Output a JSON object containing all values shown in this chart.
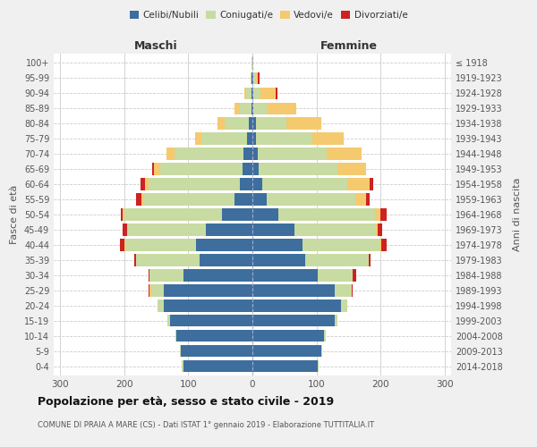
{
  "age_groups": [
    "0-4",
    "5-9",
    "10-14",
    "15-19",
    "20-24",
    "25-29",
    "30-34",
    "35-39",
    "40-44",
    "45-49",
    "50-54",
    "55-59",
    "60-64",
    "65-69",
    "70-74",
    "75-79",
    "80-84",
    "85-89",
    "90-94",
    "95-99",
    "100+"
  ],
  "birth_years": [
    "2014-2018",
    "2009-2013",
    "2004-2008",
    "1999-2003",
    "1994-1998",
    "1989-1993",
    "1984-1988",
    "1979-1983",
    "1974-1978",
    "1969-1973",
    "1964-1968",
    "1959-1963",
    "1954-1958",
    "1949-1953",
    "1944-1948",
    "1939-1943",
    "1934-1938",
    "1929-1933",
    "1924-1928",
    "1919-1923",
    "≤ 1918"
  ],
  "maschi": {
    "celibi": [
      108,
      112,
      118,
      128,
      138,
      138,
      108,
      82,
      88,
      72,
      48,
      28,
      20,
      16,
      14,
      8,
      5,
      2,
      2,
      1,
      0
    ],
    "coniugati": [
      2,
      1,
      2,
      5,
      10,
      20,
      52,
      100,
      110,
      122,
      152,
      142,
      142,
      128,
      108,
      72,
      38,
      18,
      8,
      2,
      1
    ],
    "vedovi": [
      0,
      0,
      0,
      0,
      0,
      2,
      0,
      0,
      1,
      1,
      2,
      3,
      5,
      10,
      12,
      10,
      12,
      8,
      3,
      0,
      0
    ],
    "divorziati": [
      0,
      0,
      0,
      0,
      0,
      2,
      2,
      2,
      8,
      8,
      3,
      8,
      8,
      2,
      0,
      0,
      0,
      0,
      0,
      0,
      0
    ]
  },
  "femmine": {
    "nubili": [
      102,
      108,
      112,
      128,
      138,
      128,
      102,
      82,
      78,
      65,
      40,
      22,
      16,
      10,
      8,
      5,
      5,
      2,
      2,
      2,
      0
    ],
    "coniugate": [
      2,
      1,
      2,
      5,
      10,
      25,
      55,
      100,
      120,
      128,
      152,
      138,
      132,
      122,
      108,
      88,
      48,
      22,
      10,
      2,
      1
    ],
    "vedove": [
      0,
      0,
      0,
      0,
      0,
      2,
      0,
      0,
      3,
      2,
      8,
      18,
      35,
      45,
      55,
      50,
      55,
      45,
      25,
      5,
      0
    ],
    "divorziate": [
      0,
      0,
      0,
      0,
      0,
      2,
      5,
      2,
      8,
      8,
      10,
      5,
      5,
      0,
      0,
      0,
      0,
      0,
      2,
      2,
      0
    ]
  },
  "colors": {
    "celibi": "#3d6e9e",
    "coniugati": "#c8dba2",
    "vedovi": "#f5c96e",
    "divorziati": "#cc2222"
  },
  "xlim": 310,
  "title": "Popolazione per età, sesso e stato civile - 2019",
  "subtitle": "COMUNE DI PRAIA A MARE (CS) - Dati ISTAT 1° gennaio 2019 - Elaborazione TUTTITALIA.IT",
  "ylabel": "Fasce di età",
  "ylabel_right": "Anni di nascita",
  "label_maschi": "Maschi",
  "label_femmine": "Femmine",
  "bg_color": "#f0f0f0",
  "plot_bg": "#ffffff",
  "grid_color": "#cccccc"
}
